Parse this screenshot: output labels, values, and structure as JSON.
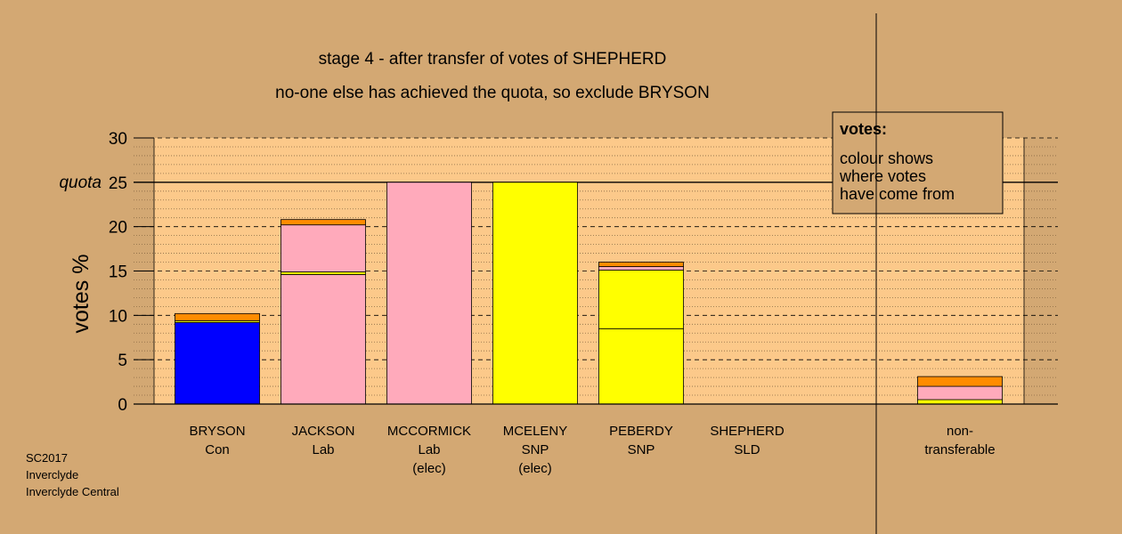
{
  "title_line1": "stage 4 - after transfer of votes of SHEPHERD",
  "title_line2": "no-one else has achieved the quota, so exclude BRYSON",
  "footer": [
    "SC2017",
    "Inverclyde",
    "Inverclyde Central"
  ],
  "legend": {
    "heading": "votes:",
    "lines": [
      "colour shows",
      "where votes",
      "have come from"
    ]
  },
  "colors": {
    "background": "#d3a873",
    "plot_area": "#fcc98a",
    "Con": "#0000ff",
    "Lab": "#ffaabb",
    "SNP": "#ffff00",
    "SLD": "#ff8c00"
  },
  "chart_data": {
    "type": "bar",
    "stacked": true,
    "ylabel": "votes %",
    "ylim": [
      0,
      30
    ],
    "yticks": [
      0,
      5,
      10,
      15,
      20,
      25,
      30
    ],
    "quota": 25,
    "quota_label": "quota",
    "grid": true,
    "legend_position": "top-right",
    "categories": [
      {
        "lines": [
          "BRYSON",
          "Con"
        ],
        "segments": [
          {
            "source": "Con",
            "value": 9.2
          },
          {
            "source": "SNP",
            "value": 0.2
          },
          {
            "source": "SLD",
            "value": 0.8
          }
        ]
      },
      {
        "lines": [
          "JACKSON",
          "Lab"
        ],
        "segments": [
          {
            "source": "Lab",
            "value": 14.6
          },
          {
            "source": "SNP",
            "value": 0.3
          },
          {
            "source": "Lab",
            "value": 5.3
          },
          {
            "source": "SLD",
            "value": 0.6
          }
        ]
      },
      {
        "lines": [
          "MCCORMICK",
          "Lab",
          "(elec)"
        ],
        "segments": [
          {
            "source": "Lab",
            "value": 25.0
          }
        ]
      },
      {
        "lines": [
          "MCELENY",
          "SNP",
          "(elec)"
        ],
        "segments": [
          {
            "source": "SNP",
            "value": 25.0
          }
        ]
      },
      {
        "lines": [
          "PEBERDY",
          "SNP"
        ],
        "segments": [
          {
            "source": "SNP",
            "value": 8.5
          },
          {
            "source": "SNP",
            "value": 6.6
          },
          {
            "source": "Lab",
            "value": 0.4
          },
          {
            "source": "SLD",
            "value": 0.5
          }
        ]
      },
      {
        "lines": [
          "SHEPHERD",
          "SLD"
        ],
        "segments": []
      },
      {
        "lines": [
          "non-",
          "transferable"
        ],
        "segments": [
          {
            "source": "SNP",
            "value": 0.5
          },
          {
            "source": "Lab",
            "value": 1.5
          },
          {
            "source": "SLD",
            "value": 1.1
          }
        ]
      }
    ]
  }
}
